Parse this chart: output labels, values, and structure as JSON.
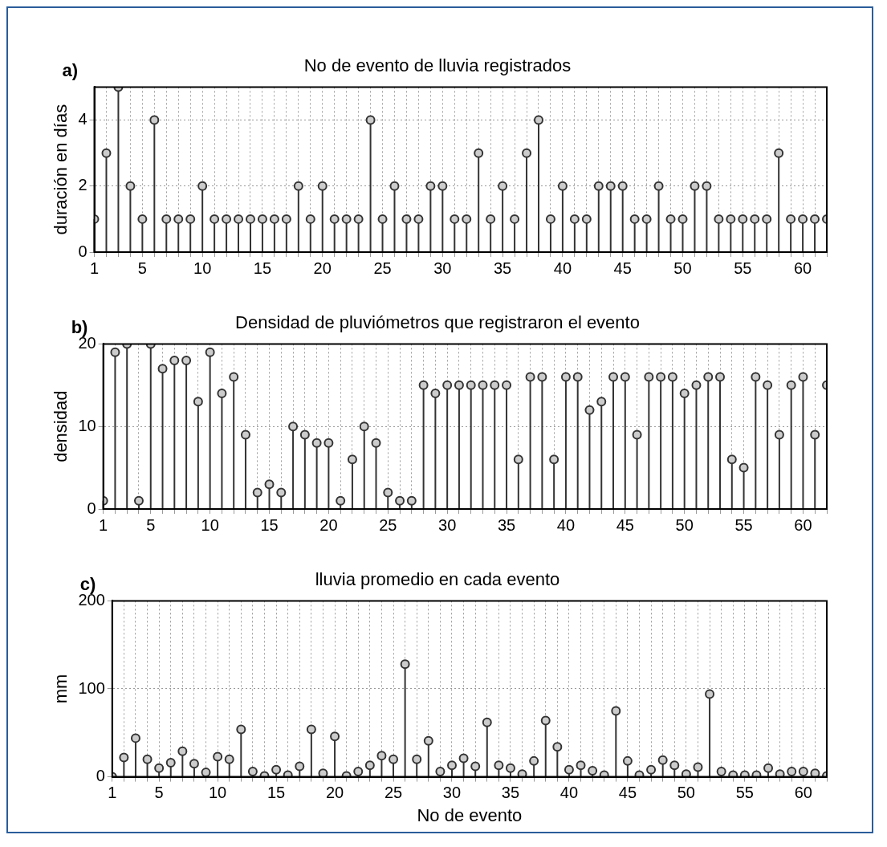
{
  "chart_data": [
    {
      "type": "lollipop",
      "title": "No de evento de lluvia registrados",
      "ylabel": "duración en días",
      "annotations": [
        "a)"
      ],
      "x": [
        1,
        2,
        3,
        4,
        5,
        6,
        7,
        8,
        9,
        10,
        11,
        12,
        13,
        14,
        15,
        16,
        17,
        18,
        19,
        20,
        21,
        22,
        23,
        24,
        25,
        26,
        27,
        28,
        29,
        30,
        31,
        32,
        33,
        34,
        35,
        36,
        37,
        38,
        39,
        40,
        41,
        42,
        43,
        44,
        45,
        46,
        47,
        48,
        49,
        50,
        51,
        52,
        53,
        54,
        55,
        56,
        57,
        58,
        59,
        60,
        61,
        62
      ],
      "values": [
        1,
        3,
        5,
        2,
        1,
        4,
        1,
        1,
        1,
        2,
        1,
        1,
        1,
        1,
        1,
        1,
        1,
        2,
        1,
        2,
        1,
        1,
        1,
        4,
        1,
        2,
        1,
        1,
        2,
        2,
        1,
        1,
        3,
        1,
        2,
        1,
        3,
        4,
        1,
        2,
        1,
        1,
        2,
        2,
        2,
        1,
        1,
        2,
        1,
        1,
        2,
        2,
        1,
        1,
        1,
        1,
        1,
        3,
        1,
        1,
        1,
        1
      ],
      "color": "#333333",
      "marker": "circle",
      "grid": true,
      "xlim": [
        1,
        62
      ],
      "xticks": [
        1,
        {
          "value": 2,
          "label": null
        },
        {
          "value": 3,
          "label": null
        },
        {
          "value": 4,
          "label": null
        },
        5,
        {
          "value": 6,
          "label": null
        },
        {
          "value": 7,
          "label": null
        },
        {
          "value": 8,
          "label": null
        },
        {
          "value": 9,
          "label": null
        },
        10,
        {
          "value": 11,
          "label": null
        },
        {
          "value": 12,
          "label": null
        },
        {
          "value": 13,
          "label": null
        },
        {
          "value": 14,
          "label": null
        },
        15,
        {
          "value": 16,
          "label": null
        },
        {
          "value": 17,
          "label": null
        },
        {
          "value": 18,
          "label": null
        },
        {
          "value": 19,
          "label": null
        },
        20,
        {
          "value": 21,
          "label": null
        },
        {
          "value": 22,
          "label": null
        },
        {
          "value": 23,
          "label": null
        },
        {
          "value": 24,
          "label": null
        },
        25,
        {
          "value": 26,
          "label": null
        },
        {
          "value": 27,
          "label": null
        },
        {
          "value": 28,
          "label": null
        },
        {
          "value": 29,
          "label": null
        },
        30,
        {
          "value": 31,
          "label": null
        },
        {
          "value": 32,
          "label": null
        },
        {
          "value": 33,
          "label": null
        },
        {
          "value": 34,
          "label": null
        },
        35,
        {
          "value": 36,
          "label": null
        },
        {
          "value": 37,
          "label": null
        },
        {
          "value": 38,
          "label": null
        },
        {
          "value": 39,
          "label": null
        },
        40,
        {
          "value": 41,
          "label": null
        },
        {
          "value": 42,
          "label": null
        },
        {
          "value": 43,
          "label": null
        },
        {
          "value": 44,
          "label": null
        },
        45,
        {
          "value": 46,
          "label": null
        },
        {
          "value": 47,
          "label": null
        },
        {
          "value": 48,
          "label": null
        },
        {
          "value": 49,
          "label": null
        },
        50,
        {
          "value": 51,
          "label": null
        },
        {
          "value": 52,
          "label": null
        },
        {
          "value": 53,
          "label": null
        },
        {
          "value": 54,
          "label": null
        },
        55,
        {
          "value": 56,
          "label": null
        },
        {
          "value": 57,
          "label": null
        },
        {
          "value": 58,
          "label": null
        },
        {
          "value": 59,
          "label": null
        },
        60,
        {
          "value": 61,
          "label": null
        },
        {
          "value": 62,
          "label": null
        }
      ],
      "ylim": [
        0,
        5
      ],
      "yticks": [
        0,
        2,
        4
      ]
    },
    {
      "type": "lollipop",
      "title": "Densidad de pluviómetros que registraron el evento",
      "ylabel": "densidad",
      "annotations": [
        "b)"
      ],
      "x": [
        1,
        2,
        3,
        4,
        5,
        6,
        7,
        8,
        9,
        10,
        11,
        12,
        13,
        14,
        15,
        16,
        17,
        18,
        19,
        20,
        21,
        22,
        23,
        24,
        25,
        26,
        27,
        28,
        29,
        30,
        31,
        32,
        33,
        34,
        35,
        36,
        37,
        38,
        39,
        40,
        41,
        42,
        43,
        44,
        45,
        46,
        47,
        48,
        49,
        50,
        51,
        52,
        53,
        54,
        55,
        56,
        57,
        58,
        59,
        60,
        61,
        62
      ],
      "values": [
        1,
        19,
        20,
        1,
        20,
        17,
        18,
        18,
        13,
        19,
        14,
        16,
        9,
        2,
        3,
        2,
        10,
        9,
        8,
        8,
        1,
        6,
        10,
        8,
        2,
        1,
        1,
        15,
        14,
        15,
        15,
        15,
        15,
        15,
        15,
        6,
        16,
        16,
        6,
        16,
        16,
        12,
        13,
        16,
        16,
        9,
        16,
        16,
        16,
        14,
        15,
        16,
        16,
        6,
        5,
        16,
        15,
        9,
        15,
        16,
        9,
        15
      ],
      "color": "#333333",
      "marker": "circle",
      "grid": true,
      "xlim": [
        1,
        62
      ],
      "xticks": [
        1,
        {
          "value": 2,
          "label": null
        },
        {
          "value": 3,
          "label": null
        },
        {
          "value": 4,
          "label": null
        },
        5,
        {
          "value": 6,
          "label": null
        },
        {
          "value": 7,
          "label": null
        },
        {
          "value": 8,
          "label": null
        },
        {
          "value": 9,
          "label": null
        },
        10,
        {
          "value": 11,
          "label": null
        },
        {
          "value": 12,
          "label": null
        },
        {
          "value": 13,
          "label": null
        },
        {
          "value": 14,
          "label": null
        },
        15,
        {
          "value": 16,
          "label": null
        },
        {
          "value": 17,
          "label": null
        },
        {
          "value": 18,
          "label": null
        },
        {
          "value": 19,
          "label": null
        },
        20,
        {
          "value": 21,
          "label": null
        },
        {
          "value": 22,
          "label": null
        },
        {
          "value": 23,
          "label": null
        },
        {
          "value": 24,
          "label": null
        },
        25,
        {
          "value": 26,
          "label": null
        },
        {
          "value": 27,
          "label": null
        },
        {
          "value": 28,
          "label": null
        },
        {
          "value": 29,
          "label": null
        },
        30,
        {
          "value": 31,
          "label": null
        },
        {
          "value": 32,
          "label": null
        },
        {
          "value": 33,
          "label": null
        },
        {
          "value": 34,
          "label": null
        },
        35,
        {
          "value": 36,
          "label": null
        },
        {
          "value": 37,
          "label": null
        },
        {
          "value": 38,
          "label": null
        },
        {
          "value": 39,
          "label": null
        },
        40,
        {
          "value": 41,
          "label": null
        },
        {
          "value": 42,
          "label": null
        },
        {
          "value": 43,
          "label": null
        },
        {
          "value": 44,
          "label": null
        },
        45,
        {
          "value": 46,
          "label": null
        },
        {
          "value": 47,
          "label": null
        },
        {
          "value": 48,
          "label": null
        },
        {
          "value": 49,
          "label": null
        },
        50,
        {
          "value": 51,
          "label": null
        },
        {
          "value": 52,
          "label": null
        },
        {
          "value": 53,
          "label": null
        },
        {
          "value": 54,
          "label": null
        },
        55,
        {
          "value": 56,
          "label": null
        },
        {
          "value": 57,
          "label": null
        },
        {
          "value": 58,
          "label": null
        },
        {
          "value": 59,
          "label": null
        },
        60,
        {
          "value": 61,
          "label": null
        },
        {
          "value": 62,
          "label": null
        }
      ],
      "ylim": [
        0,
        20
      ],
      "yticks": [
        0,
        10,
        20
      ]
    },
    {
      "type": "lollipop",
      "title": "lluvia promedio en cada evento",
      "ylabel": "mm",
      "xlabel": "No de evento",
      "annotations": [
        "c)"
      ],
      "x": [
        1,
        2,
        3,
        4,
        5,
        6,
        7,
        8,
        9,
        10,
        11,
        12,
        13,
        14,
        15,
        16,
        17,
        18,
        19,
        20,
        21,
        22,
        23,
        24,
        25,
        26,
        27,
        28,
        29,
        30,
        31,
        32,
        33,
        34,
        35,
        36,
        37,
        38,
        39,
        40,
        41,
        42,
        43,
        44,
        45,
        46,
        47,
        48,
        49,
        50,
        51,
        52,
        53,
        54,
        55,
        56,
        57,
        58,
        59,
        60,
        61,
        62
      ],
      "values": [
        0,
        22,
        44,
        20,
        10,
        16,
        29,
        15,
        5,
        23,
        20,
        54,
        6,
        1,
        8,
        2,
        12,
        54,
        4,
        46,
        1,
        6,
        13,
        24,
        20,
        128,
        20,
        41,
        6,
        13,
        21,
        12,
        62,
        13,
        10,
        3,
        18,
        64,
        34,
        8,
        13,
        7,
        2,
        75,
        18,
        2,
        8,
        19,
        13,
        3,
        11,
        94,
        6,
        2,
        2,
        2,
        10,
        3,
        6,
        6,
        4,
        1
      ],
      "color": "#333333",
      "marker": "circle",
      "grid": true,
      "xlim": [
        1,
        62
      ],
      "xticks": [
        1,
        {
          "value": 2,
          "label": null
        },
        {
          "value": 3,
          "label": null
        },
        {
          "value": 4,
          "label": null
        },
        5,
        {
          "value": 6,
          "label": null
        },
        {
          "value": 7,
          "label": null
        },
        {
          "value": 8,
          "label": null
        },
        {
          "value": 9,
          "label": null
        },
        10,
        {
          "value": 11,
          "label": null
        },
        {
          "value": 12,
          "label": null
        },
        {
          "value": 13,
          "label": null
        },
        {
          "value": 14,
          "label": null
        },
        15,
        {
          "value": 16,
          "label": null
        },
        {
          "value": 17,
          "label": null
        },
        {
          "value": 18,
          "label": null
        },
        {
          "value": 19,
          "label": null
        },
        20,
        {
          "value": 21,
          "label": null
        },
        {
          "value": 22,
          "label": null
        },
        {
          "value": 23,
          "label": null
        },
        {
          "value": 24,
          "label": null
        },
        25,
        {
          "value": 26,
          "label": null
        },
        {
          "value": 27,
          "label": null
        },
        {
          "value": 28,
          "label": null
        },
        {
          "value": 29,
          "label": null
        },
        30,
        {
          "value": 31,
          "label": null
        },
        {
          "value": 32,
          "label": null
        },
        {
          "value": 33,
          "label": null
        },
        {
          "value": 34,
          "label": null
        },
        35,
        {
          "value": 36,
          "label": null
        },
        {
          "value": 37,
          "label": null
        },
        {
          "value": 38,
          "label": null
        },
        {
          "value": 39,
          "label": null
        },
        40,
        {
          "value": 41,
          "label": null
        },
        {
          "value": 42,
          "label": null
        },
        {
          "value": 43,
          "label": null
        },
        {
          "value": 44,
          "label": null
        },
        45,
        {
          "value": 46,
          "label": null
        },
        {
          "value": 47,
          "label": null
        },
        {
          "value": 48,
          "label": null
        },
        {
          "value": 49,
          "label": null
        },
        50,
        {
          "value": 51,
          "label": null
        },
        {
          "value": 52,
          "label": null
        },
        {
          "value": 53,
          "label": null
        },
        {
          "value": 54,
          "label": null
        },
        55,
        {
          "value": 56,
          "label": null
        },
        {
          "value": 57,
          "label": null
        },
        {
          "value": 58,
          "label": null
        },
        {
          "value": 59,
          "label": null
        },
        60,
        {
          "value": 61,
          "label": null
        },
        {
          "value": 62,
          "label": null
        }
      ],
      "ylim": [
        0,
        200
      ],
      "yticks": [
        0,
        100,
        200
      ]
    }
  ]
}
